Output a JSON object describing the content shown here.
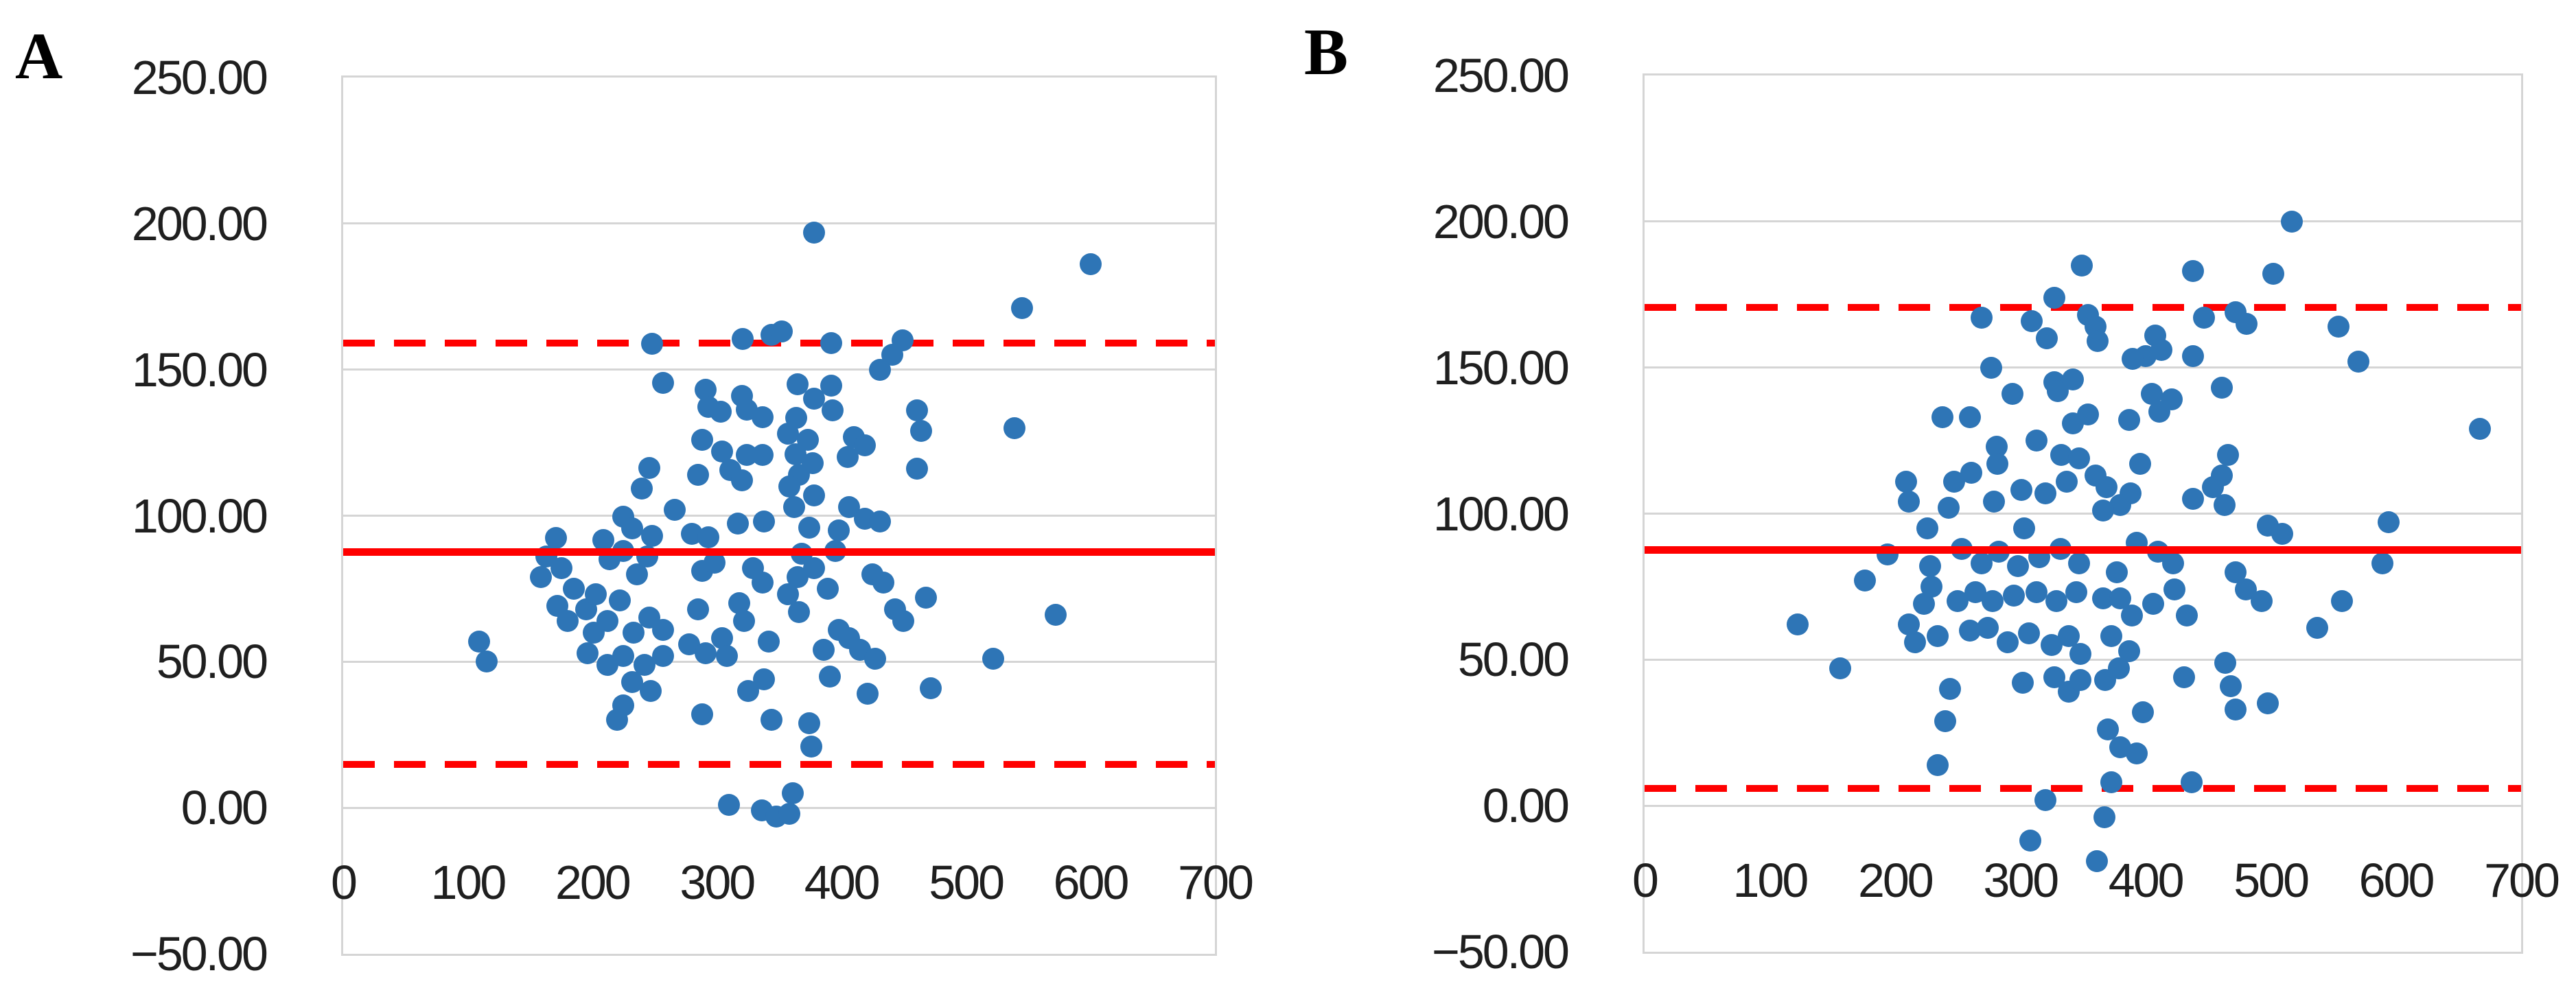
{
  "colors": {
    "point": "#2E75B6",
    "reference_line": "#FF0000",
    "grid": "#D5D5D5",
    "text": "#1F1F1F"
  },
  "chart_data": [
    {
      "type": "scatter",
      "panel_label": "A",
      "title": "",
      "xlabel": "",
      "ylabel": "",
      "legend": "none",
      "grid": "horizontal-only",
      "x": {
        "min": 0,
        "max": 700,
        "tick_step": 100
      },
      "y": {
        "min": -50,
        "max": 250,
        "tick_values": [
          250,
          200,
          150,
          100,
          50,
          0,
          -50
        ],
        "tick_labels": [
          "250.00",
          "200.00",
          "150.00",
          "100.00",
          "50.00",
          "0.00",
          "−50.00"
        ]
      },
      "reference_lines": {
        "mean": 87.6,
        "upper_limit": 159.0,
        "lower_limit": 14.8
      },
      "points": [
        [
          248,
          158.8
        ],
        [
          321,
          160.5
        ],
        [
          344,
          162
        ],
        [
          257,
          145.5
        ],
        [
          291,
          143
        ],
        [
          320,
          141
        ],
        [
          293,
          137.3
        ],
        [
          303,
          135.5
        ],
        [
          324,
          136.4
        ],
        [
          337,
          133.6
        ],
        [
          288,
          126
        ],
        [
          304,
          122
        ],
        [
          324,
          120.7
        ],
        [
          337,
          120.7
        ],
        [
          246,
          116.3
        ],
        [
          285,
          114
        ],
        [
          311,
          115.6
        ],
        [
          320,
          112
        ],
        [
          240,
          109.3
        ],
        [
          266,
          102
        ],
        [
          225,
          99.6
        ],
        [
          232,
          95.7
        ],
        [
          248,
          93
        ],
        [
          280,
          93.7
        ],
        [
          293,
          92.6
        ],
        [
          317,
          97.2
        ],
        [
          338,
          98
        ],
        [
          171,
          92.4
        ],
        [
          209,
          91.7
        ],
        [
          378,
          197
        ],
        [
          600,
          186
        ],
        [
          545,
          171
        ],
        [
          352,
          163
        ],
        [
          392,
          159
        ],
        [
          449,
          160
        ],
        [
          441,
          155
        ],
        [
          431,
          150
        ],
        [
          539,
          130
        ],
        [
          365,
          145
        ],
        [
          392,
          144.6
        ],
        [
          378,
          140
        ],
        [
          393,
          136
        ],
        [
          364,
          133.5
        ],
        [
          357,
          128
        ],
        [
          373,
          126
        ],
        [
          363,
          121
        ],
        [
          377,
          118
        ],
        [
          410,
          127
        ],
        [
          419,
          124
        ],
        [
          405,
          120
        ],
        [
          461,
          136
        ],
        [
          464,
          129
        ],
        [
          461,
          116
        ],
        [
          366,
          114
        ],
        [
          358,
          110
        ],
        [
          378,
          107
        ],
        [
          362,
          103
        ],
        [
          406,
          103
        ],
        [
          419,
          99
        ],
        [
          431,
          98
        ],
        [
          398,
          95
        ],
        [
          374,
          96
        ],
        [
          109,
          57
        ],
        [
          115,
          50
        ],
        [
          163,
          86
        ],
        [
          159,
          79
        ],
        [
          175,
          82
        ],
        [
          185,
          75
        ],
        [
          172,
          69
        ],
        [
          180,
          64
        ],
        [
          195,
          68
        ],
        [
          203,
          73
        ],
        [
          214,
          85
        ],
        [
          225,
          88
        ],
        [
          236,
          80
        ],
        [
          244,
          86
        ],
        [
          222,
          71
        ],
        [
          212,
          64
        ],
        [
          201,
          60
        ],
        [
          233,
          60
        ],
        [
          246,
          65
        ],
        [
          257,
          61
        ],
        [
          196,
          53
        ],
        [
          212,
          49
        ],
        [
          225,
          52
        ],
        [
          242,
          49
        ],
        [
          257,
          52
        ],
        [
          232,
          43
        ],
        [
          247,
          40
        ],
        [
          225,
          35
        ],
        [
          220,
          30
        ],
        [
          288,
          81
        ],
        [
          298,
          84
        ],
        [
          285,
          68
        ],
        [
          278,
          56
        ],
        [
          291,
          53
        ],
        [
          304,
          58
        ],
        [
          318,
          70
        ],
        [
          329,
          82
        ],
        [
          337,
          77
        ],
        [
          322,
          64
        ],
        [
          308,
          52
        ],
        [
          325,
          40
        ],
        [
          338,
          44
        ],
        [
          342,
          57
        ],
        [
          288,
          32
        ],
        [
          344,
          30
        ],
        [
          310,
          1
        ],
        [
          336,
          -1
        ],
        [
          348,
          -3
        ],
        [
          368,
          87
        ],
        [
          395,
          88
        ],
        [
          378,
          82
        ],
        [
          365,
          79
        ],
        [
          389,
          75
        ],
        [
          357,
          73
        ],
        [
          366,
          67
        ],
        [
          425,
          80
        ],
        [
          434,
          77
        ],
        [
          443,
          68
        ],
        [
          468,
          72
        ],
        [
          450,
          64
        ],
        [
          398,
          61
        ],
        [
          406,
          58
        ],
        [
          386,
          54
        ],
        [
          415,
          54
        ],
        [
          427,
          51
        ],
        [
          522,
          51
        ],
        [
          572,
          66
        ],
        [
          391,
          45
        ],
        [
          421,
          39
        ],
        [
          472,
          41
        ],
        [
          374,
          29
        ],
        [
          376,
          21
        ],
        [
          361,
          5
        ],
        [
          358,
          -2
        ]
      ]
    },
    {
      "type": "scatter",
      "panel_label": "B",
      "title": "",
      "xlabel": "",
      "ylabel": "",
      "legend": "none",
      "grid": "horizontal-only",
      "x": {
        "min": 0,
        "max": 700,
        "tick_step": 100
      },
      "y": {
        "min": -50,
        "max": 250,
        "tick_values": [
          250,
          200,
          150,
          100,
          50,
          0,
          -50
        ],
        "tick_labels": [
          "250.00",
          "200.00",
          "150.00",
          "100.00",
          "50.00",
          "0.00",
          "−50.00"
        ]
      },
      "reference_lines": {
        "mean": 87.5,
        "upper_limit": 170.7,
        "lower_limit": 5.9
      },
      "points": [
        [
          327,
          174
        ],
        [
          269,
          167
        ],
        [
          309,
          166
        ],
        [
          321,
          160
        ],
        [
          277,
          150
        ],
        [
          327,
          145
        ],
        [
          294,
          141
        ],
        [
          238,
          133
        ],
        [
          260,
          133
        ],
        [
          281,
          123
        ],
        [
          313,
          125
        ],
        [
          330,
          142
        ],
        [
          342,
          131
        ],
        [
          333,
          120
        ],
        [
          209,
          111
        ],
        [
          247,
          111
        ],
        [
          261,
          114
        ],
        [
          282,
          117
        ],
        [
          211,
          104
        ],
        [
          243,
          102
        ],
        [
          279,
          104
        ],
        [
          301,
          108
        ],
        [
          320,
          107
        ],
        [
          337,
          111
        ],
        [
          347,
          119
        ],
        [
          342,
          146
        ],
        [
          226,
          95
        ],
        [
          303,
          95
        ],
        [
          517,
          200
        ],
        [
          438,
          183
        ],
        [
          502,
          182
        ],
        [
          349,
          185
        ],
        [
          354,
          168
        ],
        [
          360,
          164
        ],
        [
          447,
          167
        ],
        [
          472,
          169
        ],
        [
          481,
          165
        ],
        [
          408,
          161
        ],
        [
          554,
          164
        ],
        [
          362,
          159
        ],
        [
          400,
          154
        ],
        [
          413,
          156
        ],
        [
          390,
          153
        ],
        [
          438,
          154
        ],
        [
          570,
          152
        ],
        [
          461,
          143
        ],
        [
          405,
          141
        ],
        [
          421,
          139
        ],
        [
          387,
          132
        ],
        [
          411,
          135
        ],
        [
          354,
          134
        ],
        [
          667,
          129
        ],
        [
          396,
          117
        ],
        [
          466,
          120
        ],
        [
          461,
          113
        ],
        [
          360,
          113
        ],
        [
          369,
          109
        ],
        [
          388,
          107
        ],
        [
          380,
          103
        ],
        [
          366,
          101
        ],
        [
          438,
          105
        ],
        [
          454,
          109
        ],
        [
          463,
          103
        ],
        [
          498,
          96
        ],
        [
          509,
          93
        ],
        [
          594,
          97
        ],
        [
          194,
          86
        ],
        [
          176,
          77
        ],
        [
          122,
          62
        ],
        [
          223,
          69
        ],
        [
          216,
          56
        ],
        [
          234,
          58
        ],
        [
          156,
          47
        ],
        [
          244,
          40
        ],
        [
          240,
          29
        ],
        [
          234,
          14
        ],
        [
          320,
          2
        ],
        [
          308,
          -12
        ],
        [
          228,
          82
        ],
        [
          253,
          88
        ],
        [
          269,
          83
        ],
        [
          283,
          87
        ],
        [
          298,
          82
        ],
        [
          315,
          85
        ],
        [
          332,
          88
        ],
        [
          347,
          83
        ],
        [
          229,
          75
        ],
        [
          250,
          70
        ],
        [
          264,
          73
        ],
        [
          278,
          70
        ],
        [
          295,
          72
        ],
        [
          313,
          73
        ],
        [
          329,
          70
        ],
        [
          345,
          73
        ],
        [
          211,
          62
        ],
        [
          260,
          60
        ],
        [
          274,
          61
        ],
        [
          290,
          56
        ],
        [
          307,
          59
        ],
        [
          325,
          55
        ],
        [
          339,
          58
        ],
        [
          348,
          52
        ],
        [
          302,
          42
        ],
        [
          327,
          44
        ],
        [
          339,
          39
        ],
        [
          348,
          43
        ],
        [
          377,
          80
        ],
        [
          393,
          90
        ],
        [
          410,
          87
        ],
        [
          422,
          83
        ],
        [
          366,
          71
        ],
        [
          380,
          71
        ],
        [
          389,
          65
        ],
        [
          406,
          69
        ],
        [
          423,
          74
        ],
        [
          433,
          65
        ],
        [
          472,
          80
        ],
        [
          480,
          74
        ],
        [
          493,
          70
        ],
        [
          557,
          70
        ],
        [
          537,
          61
        ],
        [
          589,
          83
        ],
        [
          373,
          58
        ],
        [
          387,
          53
        ],
        [
          379,
          47
        ],
        [
          368,
          43
        ],
        [
          431,
          44
        ],
        [
          464,
          49
        ],
        [
          468,
          41
        ],
        [
          472,
          33
        ],
        [
          498,
          35
        ],
        [
          398,
          32
        ],
        [
          370,
          26
        ],
        [
          380,
          20
        ],
        [
          393,
          18
        ],
        [
          373,
          8
        ],
        [
          437,
          8
        ],
        [
          367,
          -4
        ],
        [
          361,
          -19
        ]
      ]
    }
  ]
}
